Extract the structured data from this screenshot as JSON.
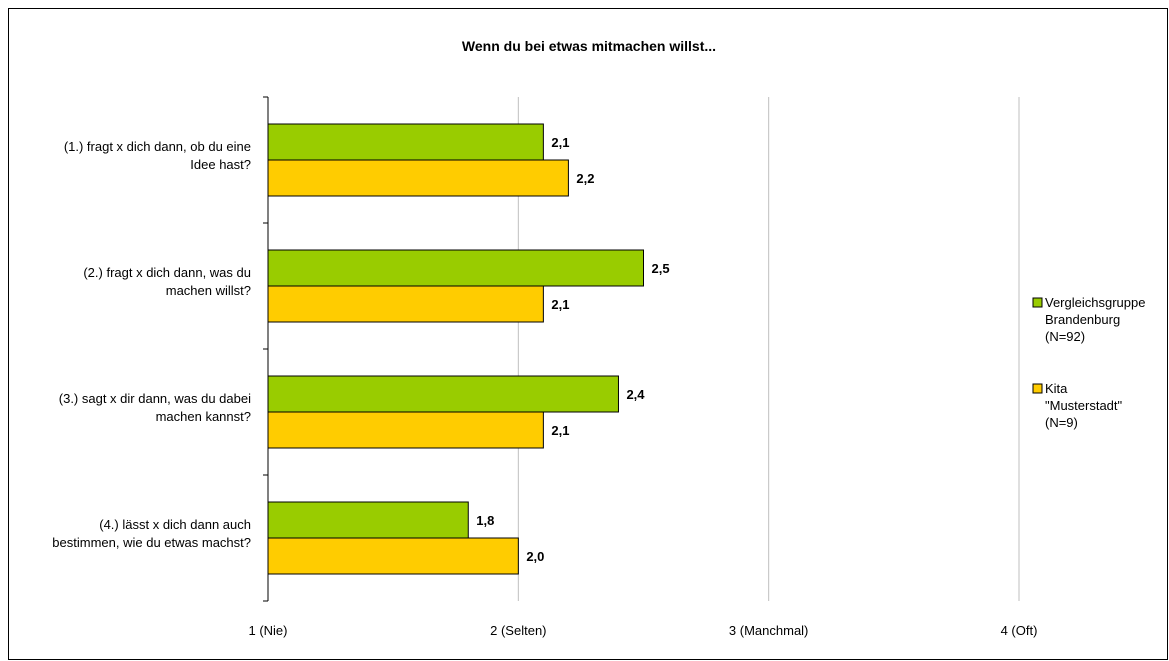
{
  "chart_data": {
    "type": "bar",
    "orientation": "horizontal",
    "title": "Wenn du bei etwas  mitmachen willst...",
    "categories": [
      [
        "(1.) fragt x dich dann, ob du eine",
        "Idee hast?"
      ],
      [
        "(2.) fragt x dich dann, was du",
        "machen willst?"
      ],
      [
        "(3.) sagt x dir dann, was du dabei",
        "machen kannst?"
      ],
      [
        "(4.) lässt x dich dann auch",
        "bestimmen, wie du etwas machst?"
      ]
    ],
    "series": [
      {
        "name": [
          "Vergleichsgruppe",
          "Brandenburg",
          "(N=92)"
        ],
        "color": "#99CC00",
        "values": [
          2.1,
          2.5,
          2.4,
          1.8
        ],
        "labels": [
          "2,1",
          "2,5",
          "2,4",
          "1,8"
        ]
      },
      {
        "name": [
          "Kita",
          "\"Musterstadt\"",
          "(N=9)"
        ],
        "color": "#FFCC00",
        "values": [
          2.2,
          2.1,
          2.1,
          2.0
        ],
        "labels": [
          "2,2",
          "2,1",
          "2,1",
          "2,0"
        ]
      }
    ],
    "xlim": [
      1,
      4
    ],
    "xticks": [
      1,
      2,
      3,
      4
    ],
    "xtick_labels": [
      "1 (Nie)",
      "2 (Selten)",
      "3 (Manchmal)",
      "4 (Oft)"
    ],
    "grid": true,
    "legend_position": "right"
  }
}
